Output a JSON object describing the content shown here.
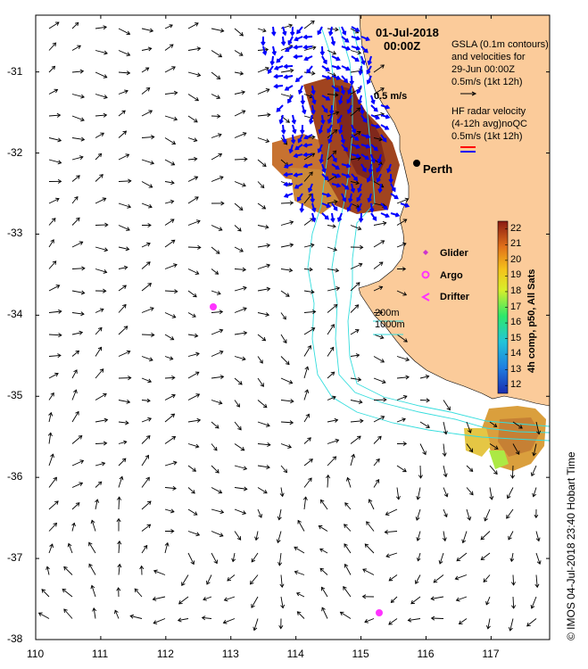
{
  "title": {
    "date": "01-Jul-2018",
    "time": "00:00Z"
  },
  "legend": {
    "gsla_lines": [
      "GSLA (0.1m contours)",
      "and velocities for",
      "29-Jun 00:00Z",
      "0.5m/s (1kt 12h)"
    ],
    "hf_lines": [
      "HF radar velocity",
      "(4-12h avg)noQC",
      "0.5m/s (1kt 12h)"
    ],
    "scale_label": "0.5 m/s",
    "markers": [
      {
        "label": "Glider",
        "color": "#cc33cc",
        "icon": "diamond-icon"
      },
      {
        "label": "Argo",
        "color": "#ff33ff",
        "icon": "circle-icon"
      },
      {
        "label": "Drifter",
        "color": "#ff33ff",
        "icon": "chevron-left-icon"
      }
    ],
    "isobaths": [
      "200m",
      "1000m"
    ]
  },
  "city": {
    "name": "Perth",
    "lon": 115.86,
    "lat": -31.95
  },
  "colorbar": {
    "label": "4h comp, p50, All Sats",
    "ticks": [
      "22",
      "21",
      "20",
      "19",
      "18",
      "17",
      "16",
      "15",
      "14",
      "13",
      "12"
    ],
    "min": 11.5,
    "max": 22.5
  },
  "axes": {
    "lon_ticks": [
      "110",
      "111",
      "112",
      "113",
      "114",
      "115",
      "116",
      "117"
    ],
    "lat_ticks": [
      "-31",
      "-32",
      "-33",
      "-34",
      "-35",
      "-36",
      "-37",
      "-38"
    ],
    "lon_range": [
      110,
      117.9
    ],
    "lat_range": [
      -38,
      -30.3
    ]
  },
  "credit": "© IMOS 04-Jul-2018 23:40 Hobart Time",
  "colors": {
    "land": "#fbcb9a",
    "vector": "#000000",
    "hf_vector": "#0000ff",
    "isobath": "#33dddd",
    "hf_legend_red": "#ff0000",
    "hf_legend_blue": "#0000ff"
  }
}
